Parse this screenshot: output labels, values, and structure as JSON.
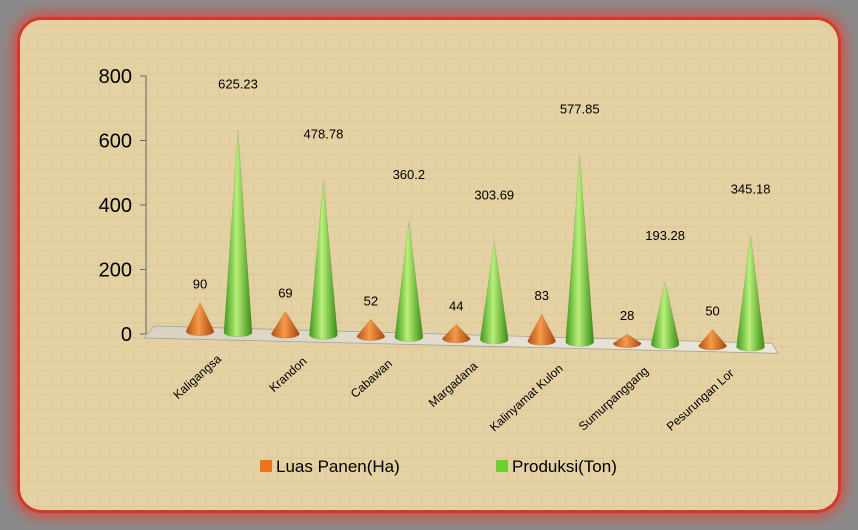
{
  "chart_data": {
    "type": "bar",
    "categories": [
      "Kaligangsa",
      "Krandon",
      "Cabawan",
      "Margadana",
      "Kalinyamat Kulon",
      "Sumurpanggang",
      "Pesurungan Lor"
    ],
    "series": [
      {
        "name": "Luas Panen(Ha)",
        "values": [
          90,
          69,
          52,
          44,
          83,
          28,
          50
        ],
        "color": "#e8741c"
      },
      {
        "name": "Produksi(Ton)",
        "values": [
          625.23,
          478.78,
          360.2,
          303.69,
          577.85,
          193.28,
          345.18
        ],
        "color": "#6fcf2e"
      }
    ],
    "data_labels": {
      "Luas Panen(Ha)": [
        "90",
        "69",
        "52",
        "44",
        "83",
        "28",
        "50"
      ],
      "Produksi(Ton)": [
        "625.23",
        "478.78",
        "360.2",
        "303.69",
        "577.85",
        "193.28",
        "345.18"
      ]
    },
    "y_ticks": [
      "0",
      "200",
      "400",
      "600",
      "800"
    ],
    "ylim": [
      0,
      800
    ],
    "legend_position": "bottom",
    "grid": false,
    "shape": "3d-cone"
  }
}
